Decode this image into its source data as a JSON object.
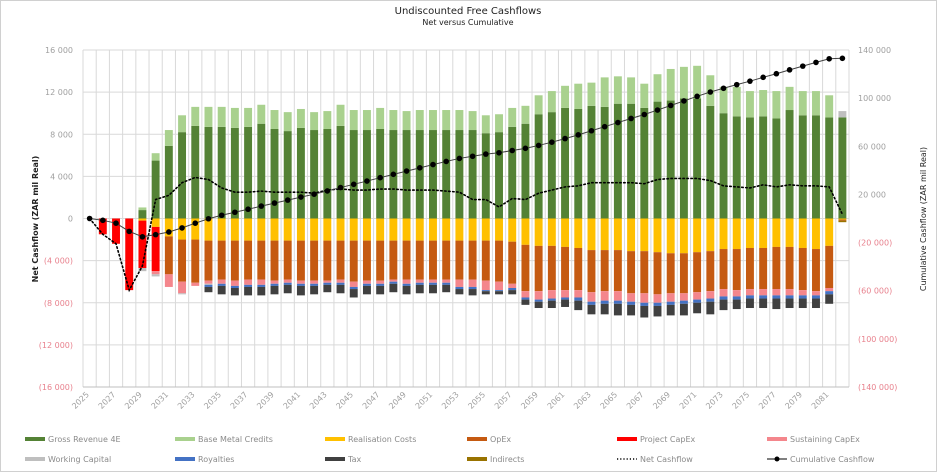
{
  "chart_data": {
    "type": "bar",
    "subtype": "stacked-bar-with-lines",
    "title": "Undiscounted Free Cashflows",
    "subtitle": "Net versus Cumulative",
    "ylabel": "Net Cashflow (ZAR mil Real)",
    "y2label": "Cumulative Cashflow  (ZAR mil Real)",
    "ylim": [
      -16000,
      16000
    ],
    "y2lim": [
      -140000,
      140000
    ],
    "yticks": [
      16000,
      12000,
      8000,
      4000,
      0,
      -4000,
      -8000,
      -12000,
      -16000
    ],
    "yticklabels": [
      "16 000",
      "12 000",
      "8 000",
      "4 000",
      "0",
      "(4 000)",
      "(8 000)",
      "(12 000)",
      "(16 000)"
    ],
    "y2ticks": [
      140000,
      100000,
      60000,
      20000,
      -20000,
      -60000,
      -100000,
      -140000
    ],
    "y2ticklabels": [
      "140 000",
      "100 000",
      "60 000",
      "20 000",
      "(20 000)",
      "(60 000)",
      "(100 000)",
      "(140 000)"
    ],
    "grid": true,
    "legend_position": "bottom",
    "categories": [
      "2025",
      "2026",
      "2027",
      "2028",
      "2029",
      "2030",
      "2031",
      "2032",
      "2033",
      "2034",
      "2035",
      "2036",
      "2037",
      "2038",
      "2039",
      "2040",
      "2041",
      "2042",
      "2043",
      "2044",
      "2045",
      "2046",
      "2047",
      "2048",
      "2049",
      "2050",
      "2051",
      "2052",
      "2053",
      "2054",
      "2055",
      "2056",
      "2057",
      "2058",
      "2059",
      "2060",
      "2061",
      "2062",
      "2063",
      "2064",
      "2065",
      "2066",
      "2067",
      "2068",
      "2069",
      "2070",
      "2071",
      "2072",
      "2073",
      "2074",
      "2075",
      "2076",
      "2077",
      "2078",
      "2079",
      "2080",
      "2081",
      "2082"
    ],
    "xticklabels": [
      "2025",
      "2027",
      "2029",
      "2031",
      "2033",
      "2035",
      "2037",
      "2039",
      "2041",
      "2043",
      "2045",
      "2047",
      "2049",
      "2051",
      "2053",
      "2055",
      "2057",
      "2059",
      "2061",
      "2063",
      "2065",
      "2067",
      "2069",
      "2071",
      "2073",
      "2075",
      "2077",
      "2079",
      "2081"
    ],
    "series": [
      {
        "name": "Gross Revenue 4E",
        "color": "#548235",
        "kind": "bar",
        "values": [
          0,
          0,
          0,
          0,
          800,
          5500,
          6900,
          8200,
          8800,
          8700,
          8700,
          8600,
          8700,
          9000,
          8500,
          8300,
          8600,
          8400,
          8500,
          8800,
          8400,
          8400,
          8500,
          8400,
          8400,
          8400,
          8400,
          8400,
          8400,
          8400,
          8100,
          8200,
          8700,
          9000,
          9900,
          10100,
          10500,
          10400,
          10700,
          10600,
          10900,
          10900,
          10500,
          11100,
          11200,
          11400,
          11400,
          10700,
          10000,
          9700,
          9600,
          9700,
          9500,
          10300,
          9800,
          9800,
          9600,
          9600
        ]
      },
      {
        "name": "Base Metal Credits",
        "color": "#a9d18e",
        "kind": "bar",
        "values": [
          0,
          0,
          0,
          0,
          250,
          700,
          1500,
          1600,
          1800,
          1900,
          1900,
          1900,
          1800,
          1800,
          1800,
          1800,
          1800,
          1700,
          1700,
          2000,
          1900,
          1900,
          2000,
          1900,
          1800,
          1900,
          1900,
          1900,
          1900,
          1800,
          1700,
          1700,
          1800,
          1700,
          1800,
          2000,
          2100,
          2400,
          2200,
          2800,
          2600,
          2500,
          2300,
          2600,
          3000,
          3000,
          3100,
          2900,
          2500,
          2800,
          2500,
          2500,
          2600,
          2200,
          2300,
          2300,
          2100,
          0
        ]
      },
      {
        "name": "Realisation Costs",
        "color": "#ffc000",
        "kind": "bar",
        "values": [
          0,
          0,
          0,
          0,
          -200,
          -800,
          -1700,
          -2000,
          -2000,
          -2100,
          -2100,
          -2100,
          -2100,
          -2100,
          -2100,
          -2100,
          -2100,
          -2100,
          -2100,
          -2100,
          -2100,
          -2100,
          -2100,
          -2100,
          -2100,
          -2100,
          -2100,
          -2100,
          -2100,
          -2100,
          -2100,
          -2100,
          -2200,
          -2500,
          -2600,
          -2600,
          -2700,
          -2800,
          -3000,
          -3000,
          -3000,
          -3100,
          -3100,
          -3200,
          -3300,
          -3300,
          -3200,
          -3100,
          -2900,
          -2900,
          -2800,
          -2800,
          -2700,
          -2700,
          -2800,
          -2900,
          -2600,
          -100
        ]
      },
      {
        "name": "OpEx",
        "color": "#c55a11",
        "kind": "bar",
        "values": [
          0,
          0,
          0,
          0,
          0,
          0,
          -3600,
          -4000,
          -4100,
          -3800,
          -3700,
          -3800,
          -3700,
          -3700,
          -3800,
          -3700,
          -3800,
          -3800,
          -3800,
          -3700,
          -3900,
          -3800,
          -3800,
          -3700,
          -3700,
          -3700,
          -3700,
          -3700,
          -3700,
          -3700,
          -3800,
          -3900,
          -4000,
          -4400,
          -4300,
          -4200,
          -4100,
          -4000,
          -4000,
          -3900,
          -3900,
          -4000,
          -4000,
          -4000,
          -3800,
          -3800,
          -3800,
          -3800,
          -3800,
          -3900,
          -3900,
          -3900,
          -4000,
          -4000,
          -4000,
          -4000,
          -4000,
          -100
        ]
      },
      {
        "name": "Project CapEx",
        "color": "#ff0000",
        "kind": "bar",
        "values": [
          0,
          -1500,
          -2400,
          -6800,
          -4500,
          -4200,
          0,
          0,
          0,
          0,
          0,
          0,
          0,
          0,
          0,
          0,
          0,
          0,
          0,
          0,
          0,
          0,
          0,
          0,
          0,
          0,
          0,
          0,
          0,
          0,
          0,
          0,
          0,
          0,
          0,
          0,
          0,
          0,
          0,
          0,
          0,
          0,
          0,
          0,
          0,
          0,
          0,
          0,
          0,
          0,
          0,
          0,
          0,
          0,
          0,
          0,
          0,
          0
        ]
      },
      {
        "name": "Sustaining CapEx",
        "color": "#f4868c",
        "kind": "bar",
        "values": [
          0,
          0,
          0,
          0,
          0,
          -300,
          -1200,
          -1100,
          -300,
          -300,
          -400,
          -500,
          -500,
          -500,
          -300,
          -300,
          -300,
          -300,
          -200,
          -300,
          -500,
          -300,
          -300,
          -200,
          -400,
          -300,
          -300,
          -300,
          -700,
          -700,
          -900,
          -800,
          -400,
          -600,
          -800,
          -800,
          -700,
          -700,
          -900,
          -900,
          -900,
          -800,
          -900,
          -800,
          -800,
          -700,
          -700,
          -700,
          -700,
          -600,
          -600,
          -600,
          -600,
          -600,
          -500,
          -400,
          -300,
          0
        ]
      },
      {
        "name": "Working Capital",
        "color": "#bfbfbf",
        "kind": "bar",
        "values": [
          0,
          0,
          0,
          0,
          -300,
          -200,
          0,
          -100,
          0,
          -100,
          0,
          0,
          0,
          0,
          0,
          0,
          0,
          0,
          0,
          0,
          0,
          0,
          0,
          0,
          0,
          0,
          0,
          0,
          0,
          0,
          0,
          0,
          0,
          0,
          0,
          0,
          0,
          0,
          0,
          0,
          0,
          0,
          0,
          0,
          0,
          0,
          0,
          0,
          0,
          0,
          0,
          0,
          0,
          0,
          0,
          0,
          0,
          600
        ]
      },
      {
        "name": "Royalties",
        "color": "#4472c4",
        "kind": "bar",
        "values": [
          0,
          0,
          0,
          0,
          0,
          0,
          0,
          0,
          0,
          -200,
          -200,
          -200,
          -200,
          -200,
          -200,
          -200,
          -200,
          -200,
          -200,
          -200,
          -200,
          -200,
          -200,
          -200,
          -200,
          -200,
          -200,
          -200,
          -200,
          -200,
          -100,
          -100,
          -200,
          -200,
          -200,
          -200,
          -200,
          -300,
          -300,
          -300,
          -300,
          -300,
          -300,
          -300,
          -300,
          -300,
          -300,
          -300,
          -300,
          -300,
          -300,
          -300,
          -300,
          -300,
          -300,
          -300,
          -300,
          0
        ]
      },
      {
        "name": "Tax",
        "color": "#404040",
        "kind": "bar",
        "values": [
          0,
          0,
          0,
          0,
          0,
          0,
          0,
          0,
          0,
          -500,
          -800,
          -700,
          -800,
          -800,
          -800,
          -800,
          -900,
          -800,
          -700,
          -800,
          -800,
          -800,
          -800,
          -800,
          -800,
          -800,
          -800,
          -700,
          -500,
          -600,
          -300,
          -300,
          -400,
          -500,
          -600,
          -700,
          -700,
          -900,
          -900,
          -1000,
          -1100,
          -1000,
          -1100,
          -1000,
          -1000,
          -1100,
          -1000,
          -1200,
          -1000,
          -900,
          -900,
          -900,
          -1000,
          -900,
          -900,
          -900,
          -900,
          0
        ]
      },
      {
        "name": "Indirects",
        "color": "#997300",
        "kind": "bar",
        "values": [
          0,
          0,
          0,
          0,
          0,
          0,
          0,
          0,
          0,
          0,
          0,
          0,
          0,
          0,
          0,
          0,
          0,
          0,
          0,
          0,
          0,
          0,
          0,
          0,
          0,
          0,
          0,
          0,
          0,
          0,
          0,
          0,
          0,
          0,
          0,
          0,
          0,
          0,
          0,
          0,
          0,
          0,
          0,
          0,
          0,
          0,
          0,
          0,
          0,
          0,
          0,
          0,
          0,
          0,
          0,
          0,
          0,
          -150
        ]
      },
      {
        "name": "Net Cashflow",
        "color": "#000000",
        "kind": "line",
        "style": "dotted",
        "axis": "left",
        "values": [
          0,
          -1500,
          -2400,
          -6800,
          -4500,
          1800,
          2200,
          3400,
          3900,
          3700,
          2900,
          2500,
          2500,
          2600,
          2500,
          2500,
          2500,
          2400,
          2700,
          2800,
          2700,
          2700,
          2800,
          2800,
          2700,
          2700,
          2700,
          2600,
          2500,
          1800,
          1800,
          1100,
          1900,
          1800,
          2400,
          2700,
          3000,
          3100,
          3400,
          3400,
          3400,
          3400,
          3300,
          3700,
          3800,
          3800,
          3800,
          3600,
          3100,
          3000,
          2900,
          3200,
          3000,
          3200,
          3100,
          3100,
          3000,
          400
        ]
      },
      {
        "name": "Cumulative Cashflow",
        "color": "#000000",
        "kind": "line",
        "style": "solid-markers",
        "axis": "right",
        "values": [
          0,
          -1500,
          -3900,
          -10700,
          -15200,
          -13400,
          -11200,
          -7800,
          -3900,
          -200,
          2700,
          5200,
          7700,
          10300,
          12800,
          15300,
          17800,
          20200,
          22900,
          25700,
          28400,
          31100,
          33900,
          36700,
          39400,
          42100,
          44800,
          47400,
          49900,
          51700,
          53500,
          54600,
          56500,
          58300,
          60700,
          63400,
          66400,
          69500,
          72900,
          76300,
          79700,
          83100,
          86400,
          90100,
          93900,
          97700,
          101500,
          105100,
          108200,
          111200,
          114100,
          117300,
          120300,
          123500,
          126600,
          129700,
          132700,
          133100
        ]
      }
    ]
  }
}
